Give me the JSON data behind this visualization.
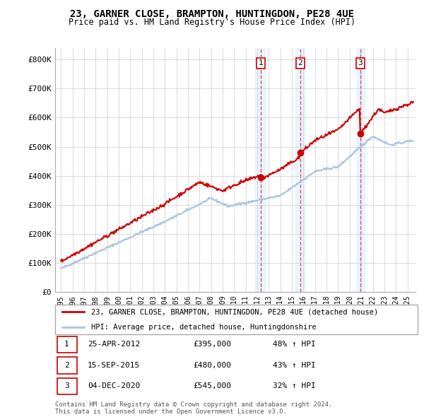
{
  "title": "23, GARNER CLOSE, BRAMPTON, HUNTINGDON, PE28 4UE",
  "subtitle": "Price paid vs. HM Land Registry's House Price Index (HPI)",
  "background_color": "#ffffff",
  "plot_bg_color": "#ffffff",
  "grid_color": "#cccccc",
  "sale1": {
    "date_num": 2012.32,
    "price": 395000,
    "label": "1",
    "date_str": "25-APR-2012",
    "pct": "48% ↑ HPI"
  },
  "sale2": {
    "date_num": 2015.71,
    "price": 480000,
    "label": "2",
    "date_str": "15-SEP-2015",
    "pct": "43% ↑ HPI"
  },
  "sale3": {
    "date_num": 2020.92,
    "price": 545000,
    "label": "3",
    "date_str": "04-DEC-2020",
    "pct": "32% ↑ HPI"
  },
  "hpi_line_color": "#aac4e0",
  "price_line_color": "#cc0000",
  "vline_color": "#cc0000",
  "shaded_color": "#ddeeff",
  "ylim": [
    0,
    840000
  ],
  "xlim_start": 1994.5,
  "xlim_end": 2025.7,
  "yticks": [
    0,
    100000,
    200000,
    300000,
    400000,
    500000,
    600000,
    700000,
    800000
  ],
  "ytick_labels": [
    "£0",
    "£100K",
    "£200K",
    "£300K",
    "£400K",
    "£500K",
    "£600K",
    "£700K",
    "£800K"
  ],
  "xticks": [
    1995,
    1996,
    1997,
    1998,
    1999,
    2000,
    2001,
    2002,
    2003,
    2004,
    2005,
    2006,
    2007,
    2008,
    2009,
    2010,
    2011,
    2012,
    2013,
    2014,
    2015,
    2016,
    2017,
    2018,
    2019,
    2020,
    2021,
    2022,
    2023,
    2024,
    2025
  ],
  "legend_label_red": "23, GARNER CLOSE, BRAMPTON, HUNTINGDON, PE28 4UE (detached house)",
  "legend_label_blue": "HPI: Average price, detached house, Huntingdonshire",
  "footer": "Contains HM Land Registry data © Crown copyright and database right 2024.\nThis data is licensed under the Open Government Licence v3.0."
}
